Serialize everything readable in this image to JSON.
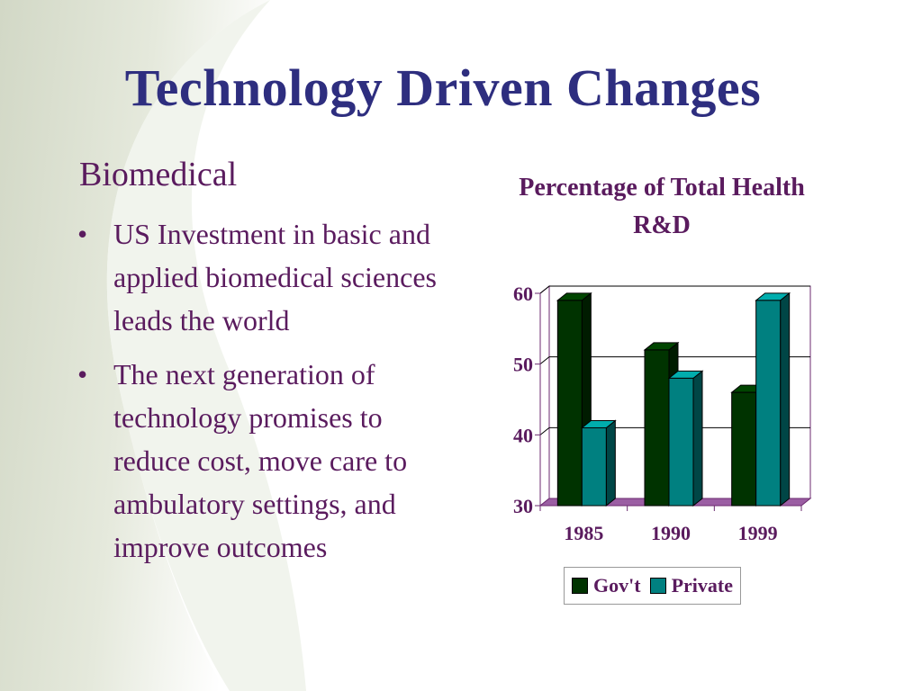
{
  "slide": {
    "title": "Technology Driven Changes",
    "section_heading": "Biomedical",
    "bullets": [
      "US Investment in basic and applied biomedical sciences leads the world",
      "The next generation of technology promises to reduce cost, move care to ambulatory settings, and improve outcomes"
    ],
    "bullet_glyph": "•",
    "colors": {
      "title": "#2e2e7f",
      "body_text": "#5a1b5e",
      "background_shape": "#dfe3d6"
    }
  },
  "chart_data": {
    "type": "bar",
    "style": "3d-clustered",
    "title": "Percentage of Total Health  R&D",
    "categories": [
      "1985",
      "1990",
      "1999"
    ],
    "series": [
      {
        "name": "Gov't",
        "values": [
          59,
          52,
          46
        ],
        "color": "#003300"
      },
      {
        "name": "Private",
        "values": [
          41,
          48,
          59
        ],
        "color": "#008080"
      }
    ],
    "ylim": [
      30,
      60
    ],
    "yticks": [
      30,
      40,
      50,
      60
    ],
    "xlabel": "",
    "ylabel": "",
    "grid": true,
    "legend": "bottom",
    "colors": {
      "axis_text": "#5a1b5e",
      "floor": "#9b5ea3",
      "frame": "#6b2a6f"
    }
  }
}
